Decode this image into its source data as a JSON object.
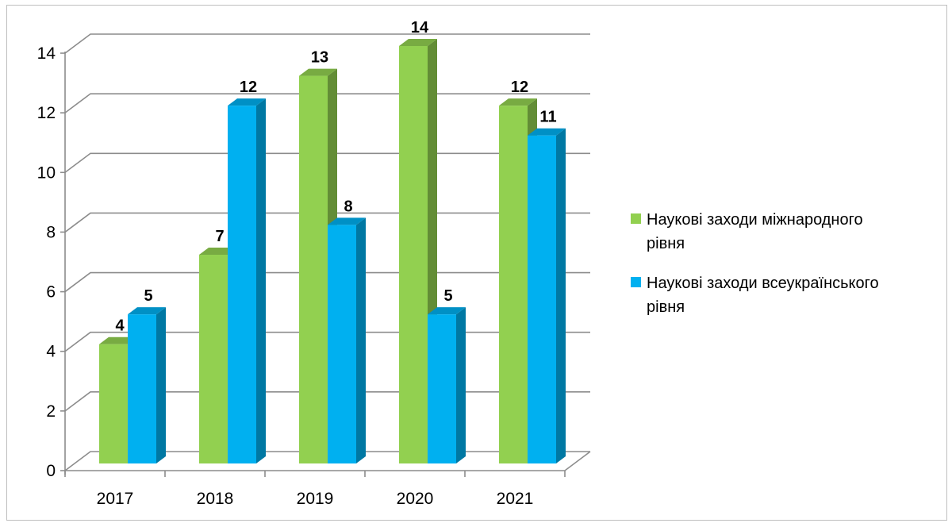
{
  "chart_data": {
    "type": "bar",
    "style": "3d-clustered-column",
    "categories": [
      "2017",
      "2018",
      "2019",
      "2020",
      "2021"
    ],
    "series": [
      {
        "name": "Наукові заходи міжнародного рівня",
        "values": [
          4,
          7,
          13,
          14,
          12
        ],
        "color": "#92D050"
      },
      {
        "name": "Наукові заходи всеукраїнського рівня",
        "values": [
          5,
          12,
          8,
          5,
          11
        ],
        "color": "#00B0F0"
      }
    ],
    "ylim": [
      0,
      14
    ],
    "yticks": [
      0,
      2,
      4,
      6,
      8,
      10,
      12,
      14
    ],
    "grid": true,
    "legend": "right",
    "data_labels": true
  }
}
